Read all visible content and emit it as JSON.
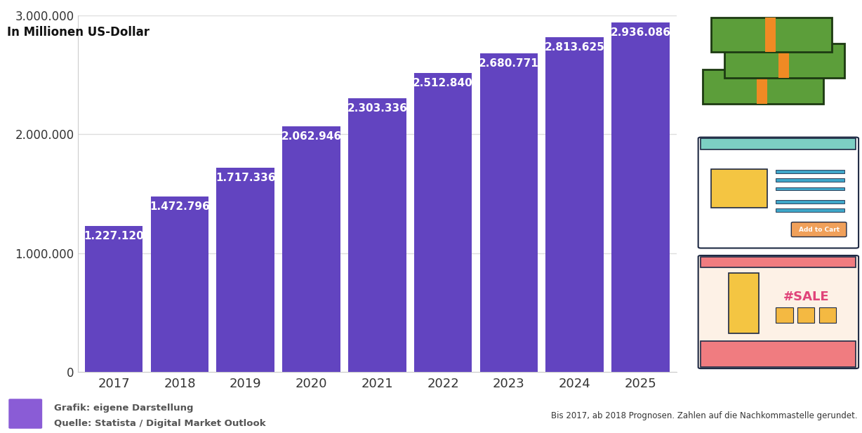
{
  "chart_data": {
    "type": "bar",
    "y_label": "In Millionen US-Dollar",
    "categories": [
      "2017",
      "2018",
      "2019",
      "2020",
      "2021",
      "2022",
      "2023",
      "2024",
      "2025"
    ],
    "values": [
      1227120,
      1472796,
      1717336,
      2062946,
      2303336,
      2512840,
      2680771,
      2813625,
      2936086
    ],
    "value_labels": [
      "1.227.120",
      "1.472.796",
      "1.717.336",
      "2.062.946",
      "2.303.336",
      "2.512.840",
      "2.680.771",
      "2.813.625",
      "2.936.086"
    ],
    "color": "#6244c0",
    "ylim": [
      0,
      3000000
    ],
    "yticks": [
      0,
      {
        "value": 1000000,
        "label": "1.000.000"
      },
      {
        "value": 2000000,
        "label": "2.000.000"
      },
      {
        "value": 3000000,
        "label": "3.000.000"
      }
    ],
    "grid": true,
    "data_labels": true,
    "annotations": [
      "Grafik: eigene Darstellung",
      "Quelle: Statista / Digital Market Outlook",
      "Bis 2017, ab 2018 Prognosen. Zahlen auf die Nachkommastelle gerundet.",
      "Add to Cart",
      "#SALE"
    ]
  }
}
